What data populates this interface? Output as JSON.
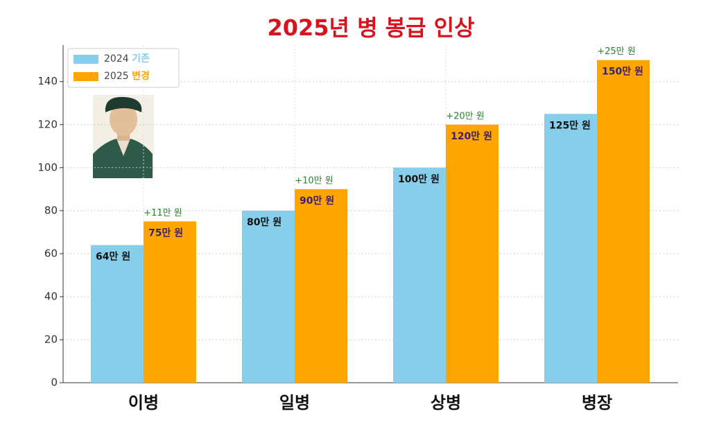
{
  "chart_data": {
    "type": "bar",
    "title": "2025년 병 봉급 인상",
    "categories": [
      "이병",
      "일병",
      "상병",
      "병장"
    ],
    "series": [
      {
        "name": "2024 기존",
        "color": "#87ceeb",
        "values": [
          64,
          80,
          100,
          125
        ],
        "value_labels": [
          "64만 원",
          "80만 원",
          "100만 원",
          "125만 원"
        ]
      },
      {
        "name": "2025 변경",
        "color": "#ffa500",
        "values": [
          75,
          90,
          120,
          150
        ],
        "value_labels": [
          "75만 원",
          "90만 원",
          "120만 원",
          "150만 원"
        ]
      }
    ],
    "annotations": [
      "+11만 원",
      "+10만 원",
      "+20만 원",
      "+25만 원"
    ],
    "ylim": [
      0,
      157
    ],
    "yticks": [
      0,
      20,
      40,
      60,
      80,
      100,
      120,
      140
    ],
    "grid": true,
    "legend": "upper left"
  }
}
